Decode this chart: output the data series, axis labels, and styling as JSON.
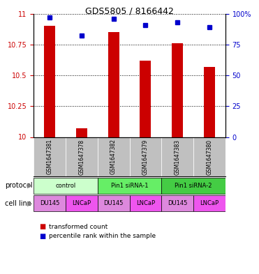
{
  "title": "GDS5805 / 8166442",
  "samples": [
    "GSM1647381",
    "GSM1647378",
    "GSM1647382",
    "GSM1647379",
    "GSM1647383",
    "GSM1647380"
  ],
  "red_values": [
    10.9,
    10.07,
    10.85,
    10.62,
    10.76,
    10.57
  ],
  "blue_values": [
    97,
    82,
    96,
    91,
    93,
    89
  ],
  "ylim_left": [
    10.0,
    11.0
  ],
  "ylim_right": [
    0,
    100
  ],
  "yticks_left": [
    10.0,
    10.25,
    10.5,
    10.75,
    11.0
  ],
  "ytick_labels_left": [
    "10",
    "10.25",
    "10.5",
    "10.75",
    "11"
  ],
  "yticks_right": [
    0,
    25,
    50,
    75,
    100
  ],
  "ytick_labels_right": [
    "0",
    "25",
    "50",
    "75",
    "100%"
  ],
  "protocols": [
    {
      "label": "control",
      "span": [
        0,
        2
      ],
      "color": "#ccffcc"
    },
    {
      "label": "Pin1 siRNA-1",
      "span": [
        2,
        4
      ],
      "color": "#66ee66"
    },
    {
      "label": "Pin1 siRNA-2",
      "span": [
        4,
        6
      ],
      "color": "#44cc44"
    }
  ],
  "cell_lines": [
    {
      "label": "DU145",
      "span": [
        0,
        1
      ],
      "color": "#dd88dd"
    },
    {
      "label": "LNCaP",
      "span": [
        1,
        2
      ],
      "color": "#ee55ee"
    },
    {
      "label": "DU145",
      "span": [
        2,
        3
      ],
      "color": "#dd88dd"
    },
    {
      "label": "LNCaP",
      "span": [
        3,
        4
      ],
      "color": "#ee55ee"
    },
    {
      "label": "DU145",
      "span": [
        4,
        5
      ],
      "color": "#dd88dd"
    },
    {
      "label": "LNCaP",
      "span": [
        5,
        6
      ],
      "color": "#ee55ee"
    }
  ],
  "red_color": "#cc0000",
  "blue_color": "#0000cc",
  "bar_width": 0.35,
  "background_color": "#ffffff",
  "legend_red": "transformed count",
  "legend_blue": "percentile rank within the sample",
  "protocol_label": "protocol",
  "cell_line_label": "cell line",
  "gray_color": "#c0c0c0"
}
